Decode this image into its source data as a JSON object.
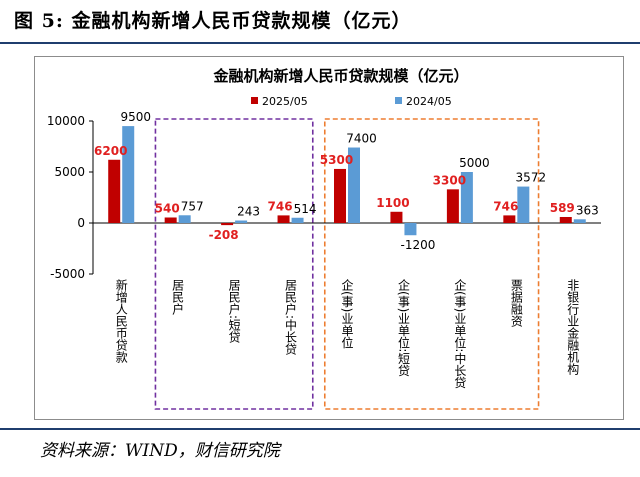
{
  "figure_title": "图 5:  金融机构新增人民币贷款规模（亿元）",
  "source": "资料来源：WIND，财信研究院",
  "colors": {
    "series1": "#c00000",
    "series2": "#5b9bd5",
    "purple_box": "#7030a0",
    "orange_box": "#ed7d31",
    "red_label": "#e02020"
  },
  "chart_data": {
    "type": "bar",
    "title": "金融机构新增人民币贷款规模（亿元）",
    "legend_position": "top",
    "categories": [
      "新增人民币贷款",
      "居民户",
      "居民户:短贷",
      "居民户:中长贷",
      "企(事)业单位",
      "企(事)业单位:短贷",
      "企(事)业单位:中长贷",
      "票据融资",
      "非银行业金融机构"
    ],
    "series": [
      {
        "name": "2025/05",
        "values": [
          6200,
          540,
          -208,
          746,
          5300,
          1100,
          3300,
          746,
          589
        ],
        "labels": [
          "6200",
          "540",
          "-208",
          "746",
          "5300",
          "1100",
          "3300",
          "746",
          "589"
        ]
      },
      {
        "name": "2024/05",
        "values": [
          9500,
          757,
          243,
          514,
          7400,
          -1200,
          5000,
          3572,
          363
        ],
        "labels": [
          "9500",
          "757",
          "243",
          "514",
          "7400",
          "-1200",
          "5000",
          "3572",
          "363"
        ]
      }
    ],
    "ylim": [
      -5000,
      10000
    ],
    "yticks": [
      "10000",
      "5000",
      "0",
      "-5000"
    ],
    "ytick_values": [
      10000,
      5000,
      0,
      -5000
    ],
    "grid": false
  }
}
